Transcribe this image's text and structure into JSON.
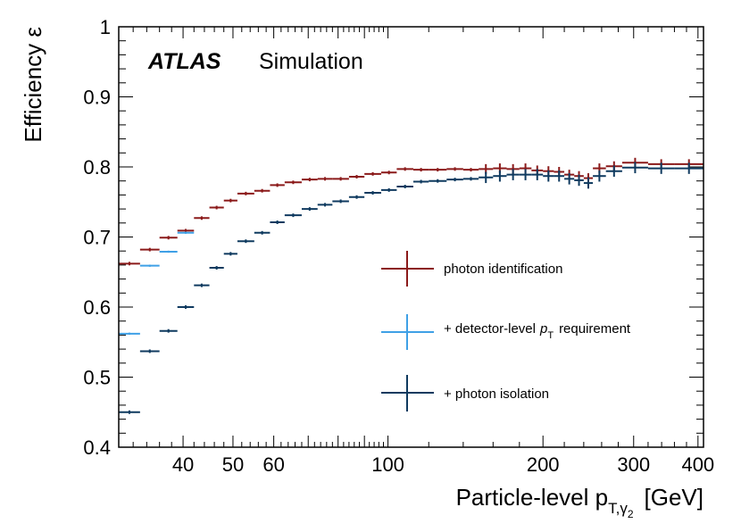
{
  "chart_data": {
    "type": "scatter",
    "label_main": "ATLAS",
    "label_sub": "Simulation",
    "xlabel_main": "Particle-level p",
    "xlabel_sub": "T,γ",
    "xlabel_subsub": "2",
    "xlabel_unit": "[GeV]",
    "ylabel": "Efficiency ε",
    "xscale": "log",
    "xlim": [
      30,
      410
    ],
    "ylim": [
      0.4,
      1.0
    ],
    "xticks_labeled": [
      40,
      50,
      60,
      100,
      200,
      300,
      400
    ],
    "xtick_labels": [
      "40",
      "50",
      "60",
      "100",
      "200",
      "300",
      "400"
    ],
    "yticks": [
      0.4,
      0.5,
      0.6,
      0.7,
      0.8,
      0.9,
      1.0
    ],
    "ytick_labels": [
      "0.4",
      "0.5",
      "0.6",
      "0.7",
      "0.8",
      "0.9",
      "1"
    ],
    "legend_position": "center-right",
    "series": [
      {
        "name": "photon identification",
        "legend_text": "photon identification",
        "color": "#8b1a1a",
        "bins": [
          [
            30,
            33,
            0.662
          ],
          [
            33,
            36,
            0.682
          ],
          [
            36,
            39,
            0.699
          ],
          [
            39,
            42,
            0.709
          ],
          [
            42,
            45,
            0.727
          ],
          [
            45,
            48,
            0.742
          ],
          [
            48,
            51,
            0.752
          ],
          [
            51,
            55,
            0.762
          ],
          [
            55,
            59,
            0.766
          ],
          [
            59,
            63,
            0.774
          ],
          [
            63,
            68,
            0.778
          ],
          [
            68,
            73,
            0.782
          ],
          [
            73,
            78,
            0.783
          ],
          [
            78,
            84,
            0.783
          ],
          [
            84,
            90,
            0.786
          ],
          [
            90,
            97,
            0.79
          ],
          [
            97,
            104,
            0.792
          ],
          [
            104,
            112,
            0.797
          ],
          [
            112,
            120,
            0.796
          ],
          [
            120,
            130,
            0.796
          ],
          [
            130,
            140,
            0.797
          ],
          [
            140,
            150,
            0.796
          ],
          [
            150,
            160,
            0.797
          ],
          [
            160,
            170,
            0.798
          ],
          [
            170,
            180,
            0.797
          ],
          [
            180,
            190,
            0.798
          ],
          [
            190,
            200,
            0.795
          ],
          [
            200,
            210,
            0.794
          ],
          [
            210,
            220,
            0.793
          ],
          [
            220,
            230,
            0.789
          ],
          [
            230,
            240,
            0.787
          ],
          [
            240,
            250,
            0.784
          ],
          [
            250,
            265,
            0.798
          ],
          [
            265,
            285,
            0.801
          ],
          [
            285,
            320,
            0.806
          ],
          [
            320,
            360,
            0.804
          ],
          [
            360,
            410,
            0.804
          ]
        ]
      },
      {
        "name": "+ detector-level pT requirement",
        "legend_text": "+ detector-level",
        "legend_var": "p",
        "legend_var_sub": "T",
        "legend_suffix": "requirement",
        "color": "#3fa0e6",
        "bins": [
          [
            30,
            33,
            0.562
          ],
          [
            33,
            36,
            0.659
          ],
          [
            36,
            39,
            0.679
          ],
          [
            39,
            42,
            0.706
          ]
        ]
      },
      {
        "name": "+ photon isolation",
        "legend_text": "+ photon isolation",
        "color": "#0f3a5f",
        "bins": [
          [
            30,
            33,
            0.45
          ],
          [
            33,
            36,
            0.537
          ],
          [
            36,
            39,
            0.566
          ],
          [
            39,
            42,
            0.6
          ],
          [
            42,
            45,
            0.631
          ],
          [
            45,
            48,
            0.656
          ],
          [
            48,
            51,
            0.676
          ],
          [
            51,
            55,
            0.694
          ],
          [
            55,
            59,
            0.706
          ],
          [
            59,
            63,
            0.721
          ],
          [
            63,
            68,
            0.731
          ],
          [
            68,
            73,
            0.74
          ],
          [
            73,
            78,
            0.746
          ],
          [
            78,
            84,
            0.751
          ],
          [
            84,
            90,
            0.757
          ],
          [
            90,
            97,
            0.763
          ],
          [
            97,
            104,
            0.767
          ],
          [
            104,
            112,
            0.772
          ],
          [
            112,
            120,
            0.779
          ],
          [
            120,
            130,
            0.78
          ],
          [
            130,
            140,
            0.782
          ],
          [
            140,
            150,
            0.783
          ],
          [
            150,
            160,
            0.785
          ],
          [
            160,
            170,
            0.787
          ],
          [
            170,
            180,
            0.789
          ],
          [
            180,
            190,
            0.789
          ],
          [
            190,
            200,
            0.789
          ],
          [
            200,
            210,
            0.787
          ],
          [
            210,
            220,
            0.787
          ],
          [
            220,
            230,
            0.783
          ],
          [
            230,
            240,
            0.781
          ],
          [
            240,
            250,
            0.777
          ],
          [
            250,
            265,
            0.787
          ],
          [
            265,
            285,
            0.794
          ],
          [
            285,
            320,
            0.799
          ],
          [
            320,
            360,
            0.798
          ],
          [
            360,
            410,
            0.798
          ]
        ]
      }
    ]
  }
}
